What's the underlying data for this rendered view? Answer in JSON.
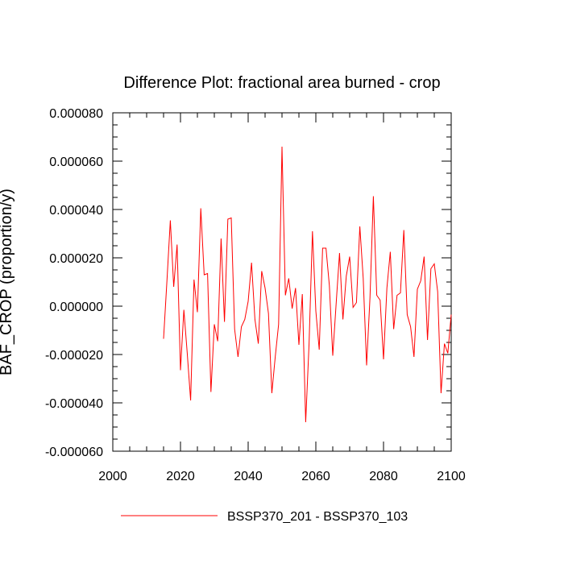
{
  "chart_data": {
    "type": "line",
    "title": "Difference Plot: fractional area burned - crop",
    "xlabel": "",
    "ylabel": "BAF_CROP  (proportion/y)",
    "xlim": [
      2000,
      2100
    ],
    "ylim": [
      -6e-05,
      8e-05
    ],
    "x_ticks": [
      "2000",
      "2020",
      "2040",
      "2060",
      "2080",
      "2100"
    ],
    "y_ticks": [
      "-0.000060",
      "-0.000040",
      "-0.000020",
      "0.000000",
      "0.000020",
      "0.000040",
      "0.000060",
      "0.000080"
    ],
    "grid": false,
    "legend_position": "bottom-center",
    "series": [
      {
        "name": "BSSP370_201 - BSSP370_103",
        "color": "#ff0000",
        "x": [
          2015,
          2016,
          2017,
          2018,
          2019,
          2020,
          2021,
          2022,
          2023,
          2024,
          2025,
          2026,
          2027,
          2028,
          2029,
          2030,
          2031,
          2032,
          2033,
          2034,
          2035,
          2036,
          2037,
          2038,
          2039,
          2040,
          2041,
          2042,
          2043,
          2044,
          2045,
          2046,
          2047,
          2048,
          2049,
          2050,
          2051,
          2052,
          2053,
          2054,
          2055,
          2056,
          2057,
          2058,
          2059,
          2060,
          2061,
          2062,
          2063,
          2064,
          2065,
          2066,
          2067,
          2068,
          2069,
          2070,
          2071,
          2072,
          2073,
          2074,
          2075,
          2076,
          2077,
          2078,
          2079,
          2080,
          2081,
          2082,
          2083,
          2084,
          2085,
          2086,
          2087,
          2088,
          2089,
          2090,
          2091,
          2092,
          2093,
          2094,
          2095,
          2096,
          2097,
          2098,
          2099,
          2100
        ],
        "y": [
          -1.35e-05,
          1.05e-05,
          3.55e-05,
          8e-06,
          2.55e-05,
          -2.65e-05,
          -1.5e-06,
          -1.95e-05,
          -3.9e-05,
          1.1e-05,
          -2.5e-06,
          4.05e-05,
          1.3e-05,
          1.35e-05,
          -3.55e-05,
          -7.5e-06,
          -1.45e-05,
          2.8e-05,
          -6.5e-06,
          3.6e-05,
          3.65e-05,
          -9.5e-06,
          -2.1e-05,
          -8.5e-06,
          -5.5e-06,
          2e-06,
          1.8e-05,
          -5.5e-06,
          -1.55e-05,
          1.45e-05,
          7.5e-06,
          -3e-06,
          -3.6e-05,
          -2.1e-05,
          -7.5e-06,
          6.6e-05,
          4.5e-06,
          1.15e-05,
          -1e-06,
          7.5e-06,
          -1.6e-05,
          5e-06,
          -4.8e-05,
          -1.55e-05,
          3.1e-05,
          -2e-06,
          -1.8e-05,
          2.4e-05,
          2.4e-05,
          8.5e-06,
          -2.05e-05,
          1e-06,
          2.2e-05,
          -5.5e-06,
          1.25e-05,
          2.05e-05,
          -5e-07,
          1.5e-06,
          3.3e-05,
          1.15e-05,
          -2.45e-05,
          3.5e-06,
          4.55e-05,
          4.5e-06,
          2.5e-06,
          -2.2e-05,
          7.5e-06,
          2.25e-05,
          -9.5e-06,
          4.5e-06,
          5.5e-06,
          3.15e-05,
          -3.5e-06,
          -8.5e-06,
          -2.1e-05,
          7e-06,
          1.05e-05,
          2.05e-05,
          -1.4e-05,
          1.55e-05,
          1.75e-05,
          6e-06,
          -3.6e-05,
          -1.55e-05,
          -1.95e-05,
          -3.5e-06
        ]
      }
    ]
  }
}
